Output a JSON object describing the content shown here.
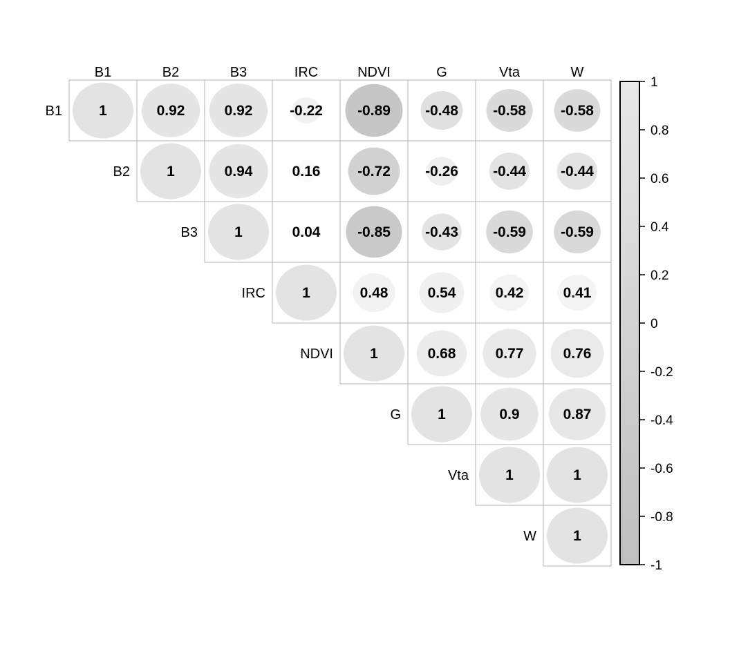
{
  "figure": {
    "background": "#ffffff",
    "description": "Correlation matrix plot (upper triangle) with circles sized and shaded by correlation magnitude"
  },
  "chart_data": {
    "type": "heatmap",
    "subtype": "correlation-matrix-upper-triangle",
    "glyph": "circle-area-proportional-to-abs-value",
    "variables": [
      "B1",
      "B2",
      "B3",
      "IRC",
      "NDVI",
      "G",
      "Vta",
      "W"
    ],
    "matrix_upper_rows": [
      [
        1,
        0.92,
        0.92,
        -0.22,
        -0.89,
        -0.48,
        -0.58,
        -0.58
      ],
      [
        1,
        0.94,
        0.16,
        -0.72,
        -0.26,
        -0.44,
        -0.44
      ],
      [
        1,
        0.04,
        -0.85,
        -0.43,
        -0.59,
        -0.59
      ],
      [
        1,
        0.48,
        0.54,
        0.42,
        0.41
      ],
      [
        1,
        0.68,
        0.77,
        0.76
      ],
      [
        1,
        0.9,
        0.87
      ],
      [
        1,
        1
      ],
      [
        1
      ]
    ],
    "colorbar": {
      "ticks": [
        "1",
        "0.8",
        "0.6",
        "0.4",
        "0.2",
        "0",
        "-0.2",
        "-0.4",
        "-0.6",
        "-0.8",
        "-1"
      ],
      "range_top": 1,
      "range_bottom": -1,
      "top_color": "#e8e8e8",
      "bottom_color": "#bfbfbf",
      "border_color": "#000000"
    },
    "colors": {
      "grid_line": "#b3b3b3",
      "value_text": "#000000",
      "label_text": "#000000",
      "positive_full_circle": "#e3e3e3",
      "negative_full_circle": "#bfbfbf",
      "background": "#ffffff"
    }
  }
}
